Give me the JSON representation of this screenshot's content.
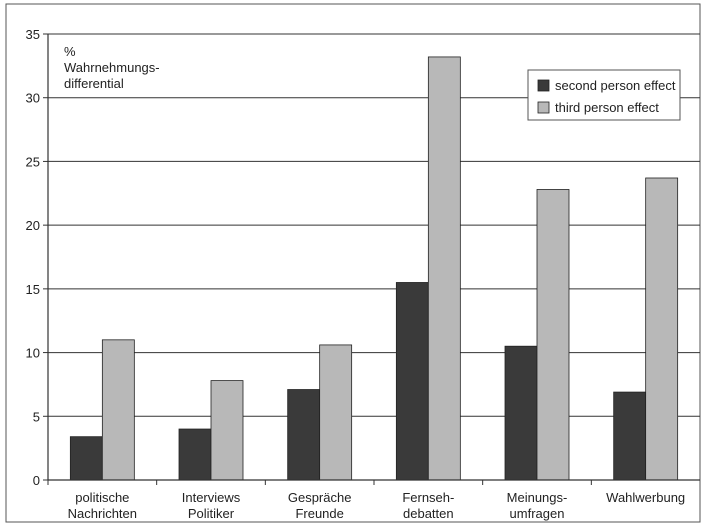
{
  "chart_data": {
    "type": "bar",
    "ylabel_lines": [
      "%",
      "Wahrnehmungs-",
      "differential"
    ],
    "ylim": [
      0,
      35
    ],
    "yticks": [
      0,
      5,
      10,
      15,
      20,
      25,
      30,
      35
    ],
    "grid": true,
    "legend_position": "top-right",
    "categories": [
      [
        "politische",
        "Nachrichten"
      ],
      [
        "Interviews",
        "Politiker"
      ],
      [
        "Gespräche",
        "Freunde"
      ],
      [
        "Fernseh-",
        "debatten"
      ],
      [
        "Meinungs-",
        "umfragen"
      ],
      [
        "Wahlwerbung"
      ]
    ],
    "series": [
      {
        "name": "second person effect",
        "color": "#3a3a3a",
        "values": [
          3.4,
          4.0,
          7.1,
          15.5,
          10.5,
          6.9
        ]
      },
      {
        "name": "third person effect",
        "color": "#b8b8b8",
        "values": [
          11.0,
          7.8,
          10.6,
          33.2,
          22.8,
          23.7
        ]
      }
    ]
  }
}
